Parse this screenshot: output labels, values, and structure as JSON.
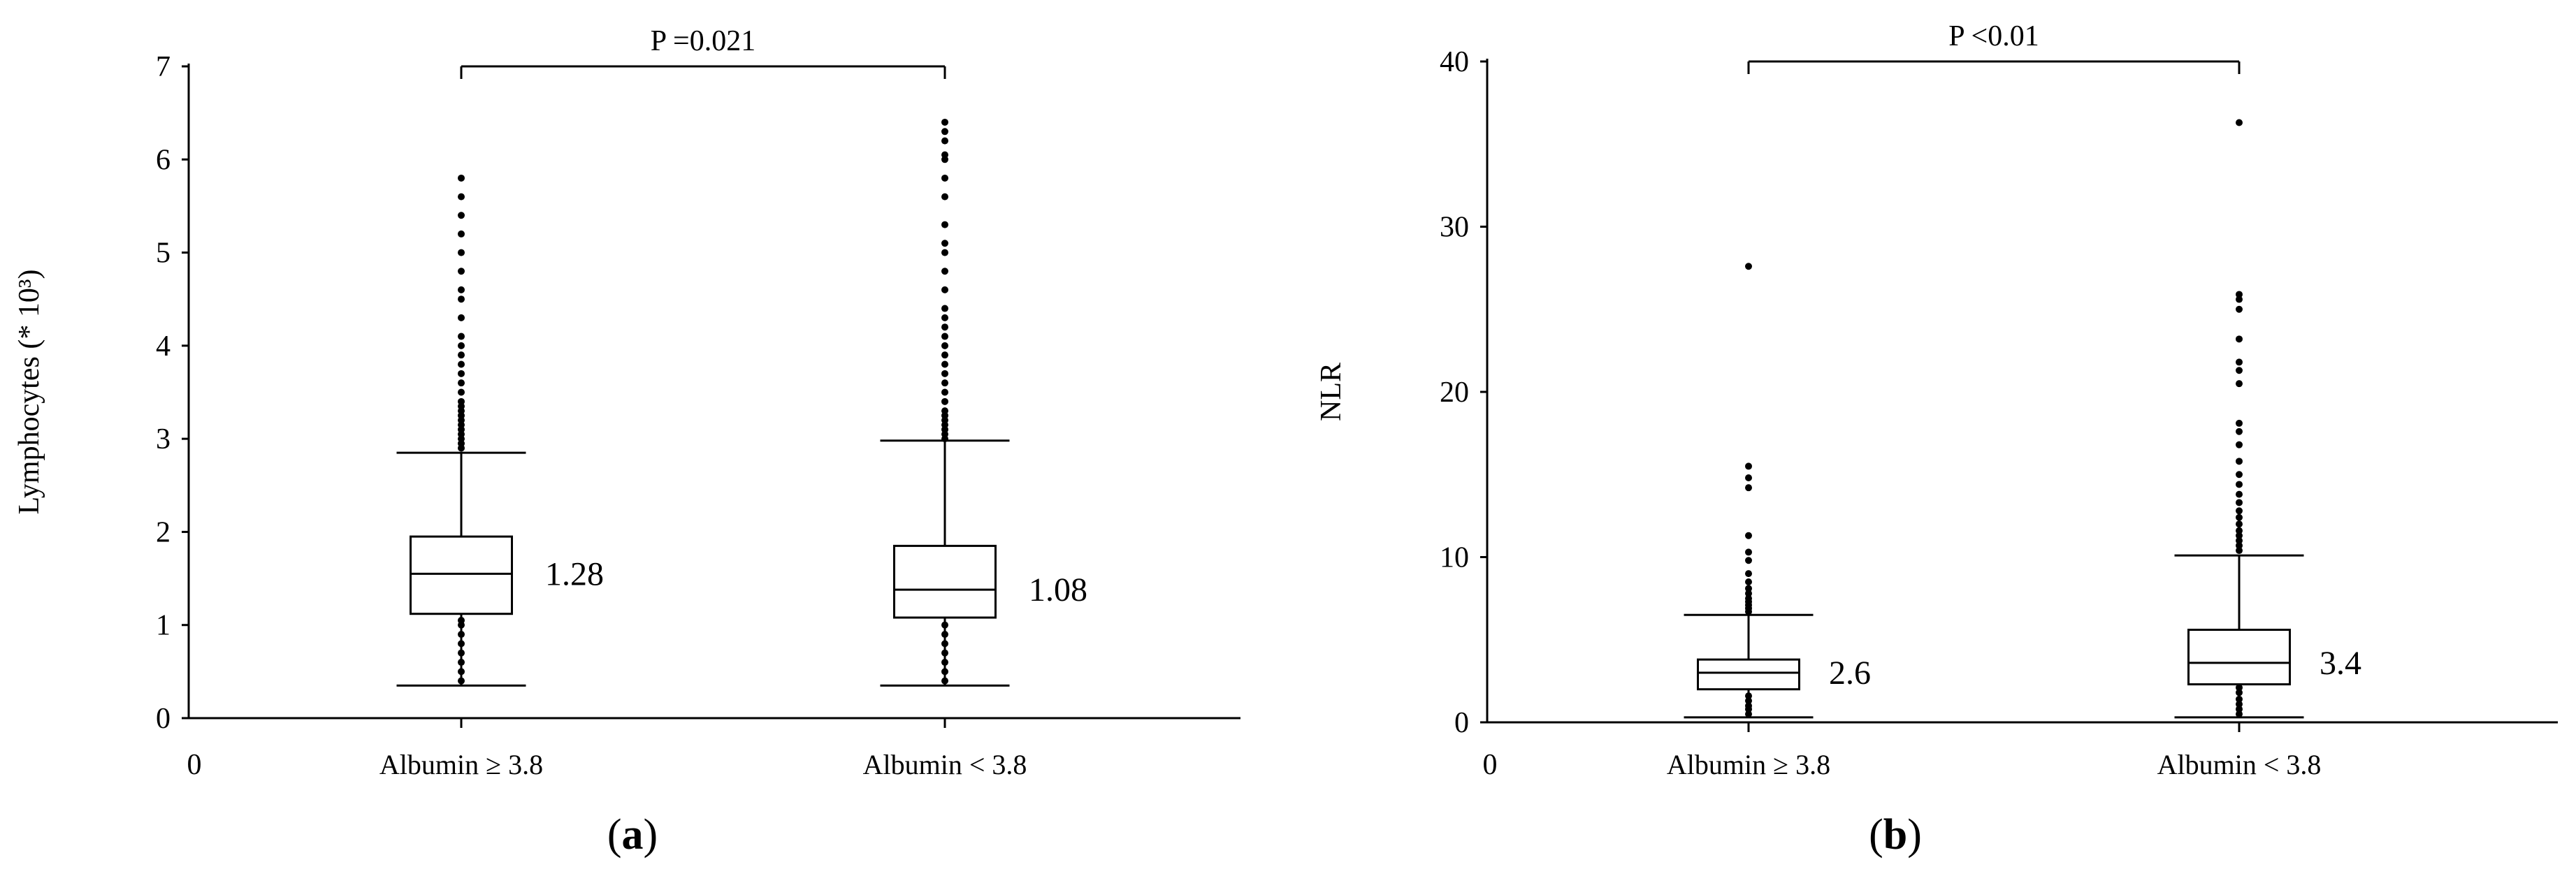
{
  "chart_data": [
    {
      "type": "box",
      "panel_label": "a",
      "ylabel": "Lymphocytes (* 10³)",
      "x_origin_label": "0",
      "ylim": [
        0,
        7
      ],
      "yticks": [
        0,
        1,
        2,
        3,
        4,
        5,
        6,
        7
      ],
      "grid": false,
      "categories": [
        "Albumin ≥ 3.8",
        "Albumin < 3.8"
      ],
      "boxes": [
        {
          "category": "Albumin ≥ 3.8",
          "whisker_low": 0.35,
          "q1": 1.12,
          "median": 1.55,
          "q3": 1.95,
          "whisker_high": 2.85,
          "annotation": "1.28",
          "outliers_high": [
            2.9,
            2.95,
            3.0,
            3.05,
            3.1,
            3.15,
            3.2,
            3.25,
            3.3,
            3.35,
            3.4,
            3.5,
            3.6,
            3.7,
            3.8,
            3.9,
            4.0,
            4.1,
            4.3,
            4.5,
            4.6,
            4.8,
            5.0,
            5.2,
            5.4,
            5.6,
            5.8
          ],
          "outliers_low": [
            0.4,
            0.5,
            0.6,
            0.7,
            0.8,
            0.9,
            1.0,
            1.05
          ]
        },
        {
          "category": "Albumin < 3.8",
          "whisker_low": 0.35,
          "q1": 1.08,
          "median": 1.38,
          "q3": 1.85,
          "whisker_high": 2.98,
          "annotation": "1.08",
          "outliers_high": [
            3.0,
            3.05,
            3.1,
            3.15,
            3.2,
            3.25,
            3.3,
            3.4,
            3.5,
            3.6,
            3.7,
            3.8,
            3.9,
            4.0,
            4.1,
            4.2,
            4.3,
            4.4,
            4.6,
            4.8,
            5.0,
            5.1,
            5.3,
            5.6,
            5.8,
            6.0,
            6.05,
            6.2,
            6.3,
            6.4
          ],
          "outliers_low": [
            0.4,
            0.5,
            0.6,
            0.7,
            0.8,
            0.9,
            1.0
          ]
        }
      ],
      "comparison": {
        "label": "P =0.021",
        "between": [
          "Albumin ≥ 3.8",
          "Albumin < 3.8"
        ]
      }
    },
    {
      "type": "box",
      "panel_label": "b",
      "ylabel": "NLR",
      "x_origin_label": "0",
      "ylim": [
        0,
        40
      ],
      "yticks": [
        0,
        10,
        20,
        30,
        40
      ],
      "grid": false,
      "categories": [
        "Albumin ≥ 3.8",
        "Albumin < 3.8"
      ],
      "boxes": [
        {
          "category": "Albumin ≥ 3.8",
          "whisker_low": 0.3,
          "q1": 2.0,
          "median": 3.0,
          "q3": 3.8,
          "whisker_high": 6.5,
          "annotation": "2.6",
          "outliers_high": [
            6.7,
            6.9,
            7.1,
            7.3,
            7.5,
            7.8,
            8.1,
            8.5,
            9.0,
            9.8,
            10.3,
            11.3,
            14.2,
            14.8,
            15.5,
            27.6
          ],
          "outliers_low": [
            0.5,
            0.8,
            1.0,
            1.3,
            1.6
          ]
        },
        {
          "category": "Albumin < 3.8",
          "whisker_low": 0.3,
          "q1": 2.3,
          "median": 3.6,
          "q3": 5.6,
          "whisker_high": 10.1,
          "annotation": "3.4",
          "outliers_high": [
            10.4,
            10.7,
            11.0,
            11.3,
            11.6,
            12.0,
            12.4,
            12.8,
            13.3,
            13.8,
            14.4,
            15.0,
            15.8,
            16.8,
            17.6,
            18.1,
            20.5,
            21.3,
            21.8,
            23.2,
            25.0,
            25.6,
            25.9,
            36.3
          ],
          "outliers_low": [
            0.5,
            0.8,
            1.1,
            1.4,
            1.8,
            2.1
          ]
        }
      ],
      "comparison": {
        "label": "P <0.01",
        "between": [
          "Albumin ≥ 3.8",
          "Albumin < 3.8"
        ]
      }
    }
  ]
}
